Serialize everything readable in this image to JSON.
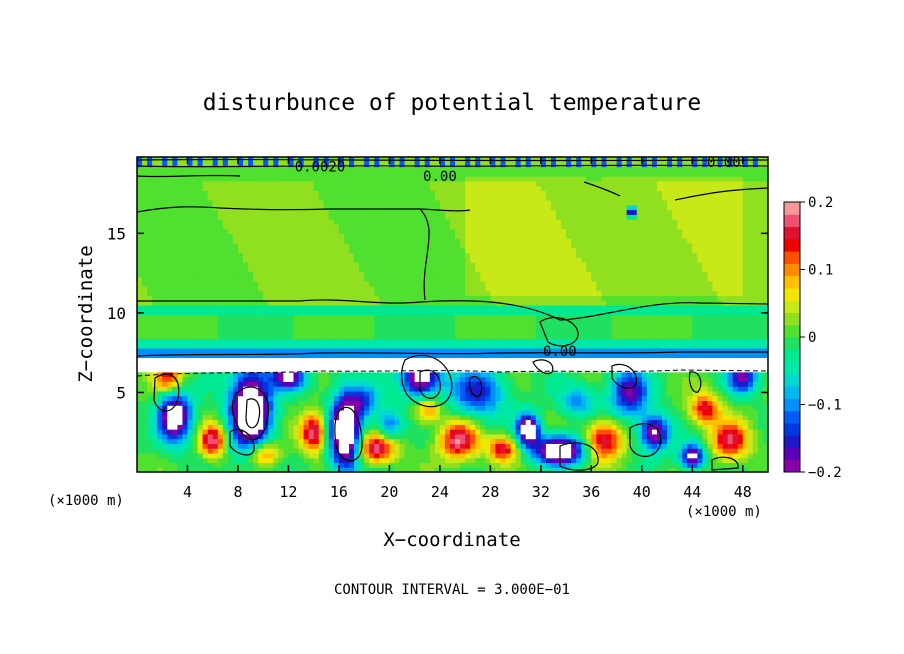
{
  "chart_data": {
    "type": "heatmap",
    "title": "disturbunce of potential temperature",
    "xlabel": "X−coordinate",
    "ylabel": "Z−coordinate",
    "x_unit": "(×1000 m)",
    "x_unit_right": "(×1000 m)",
    "footer": "CONTOUR INTERVAL = 3.000E−01",
    "xlim": [
      0,
      50
    ],
    "ylim": [
      0,
      19.8
    ],
    "x_ticks": [
      4,
      8,
      12,
      16,
      20,
      24,
      28,
      32,
      36,
      40,
      44,
      48
    ],
    "y_ticks": [
      5,
      10,
      15
    ],
    "colorbar": {
      "range": [
        -0.2,
        0.2
      ],
      "tick_values": [
        0.2,
        0.1,
        0,
        -0.1,
        -0.2
      ],
      "tick_labels": [
        "0.2",
        "0.1",
        "0",
        "−0.1",
        "−0.2"
      ],
      "colors": [
        "#8a00a8",
        "#5a00b8",
        "#1c18c8",
        "#0038e0",
        "#005cf4",
        "#0090f8",
        "#00b8f0",
        "#00d8d0",
        "#00e8a8",
        "#00e890",
        "#20e060",
        "#50e030",
        "#90e020",
        "#c8e818",
        "#f0e800",
        "#ffc000",
        "#ff8c00",
        "#ff5000",
        "#f00000",
        "#e01030",
        "#f05070",
        "#f89898"
      ]
    },
    "contour_labels": [
      {
        "text": "0.0020",
        "x": 14.5,
        "z": 19.2
      },
      {
        "text": "0.00",
        "x": 24.0,
        "z": 18.6
      },
      {
        "text": "0.00",
        "x": 46.5,
        "z": 19.5
      },
      {
        "text": "0.00",
        "x": 33.5,
        "z": 7.6
      }
    ]
  }
}
